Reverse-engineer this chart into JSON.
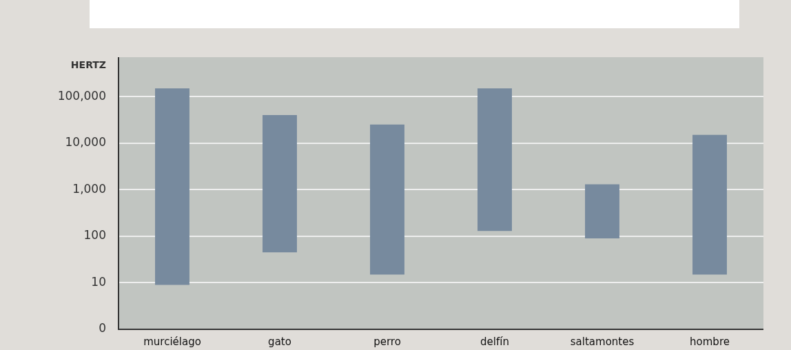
{
  "chart_data": {
    "type": "bar",
    "ylabel": "HERTZ",
    "categories": [
      "murciélago",
      "gato",
      "perro",
      "delfín",
      "saltamontes",
      "hombre"
    ],
    "base": [
      9,
      45,
      15,
      130,
      90,
      15
    ],
    "values": [
      149991,
      39955,
      24985,
      149870,
      1210,
      14985
    ],
    "color": "#778a9e",
    "log": true,
    "ylim": [
      0,
      700000
    ],
    "yticks": [
      0,
      10,
      100,
      {
        "value": 1000,
        "label": "1,000"
      },
      {
        "value": 10000,
        "label": "10,000"
      },
      {
        "value": 100000,
        "label": "100,000"
      }
    ],
    "grid": "y"
  }
}
